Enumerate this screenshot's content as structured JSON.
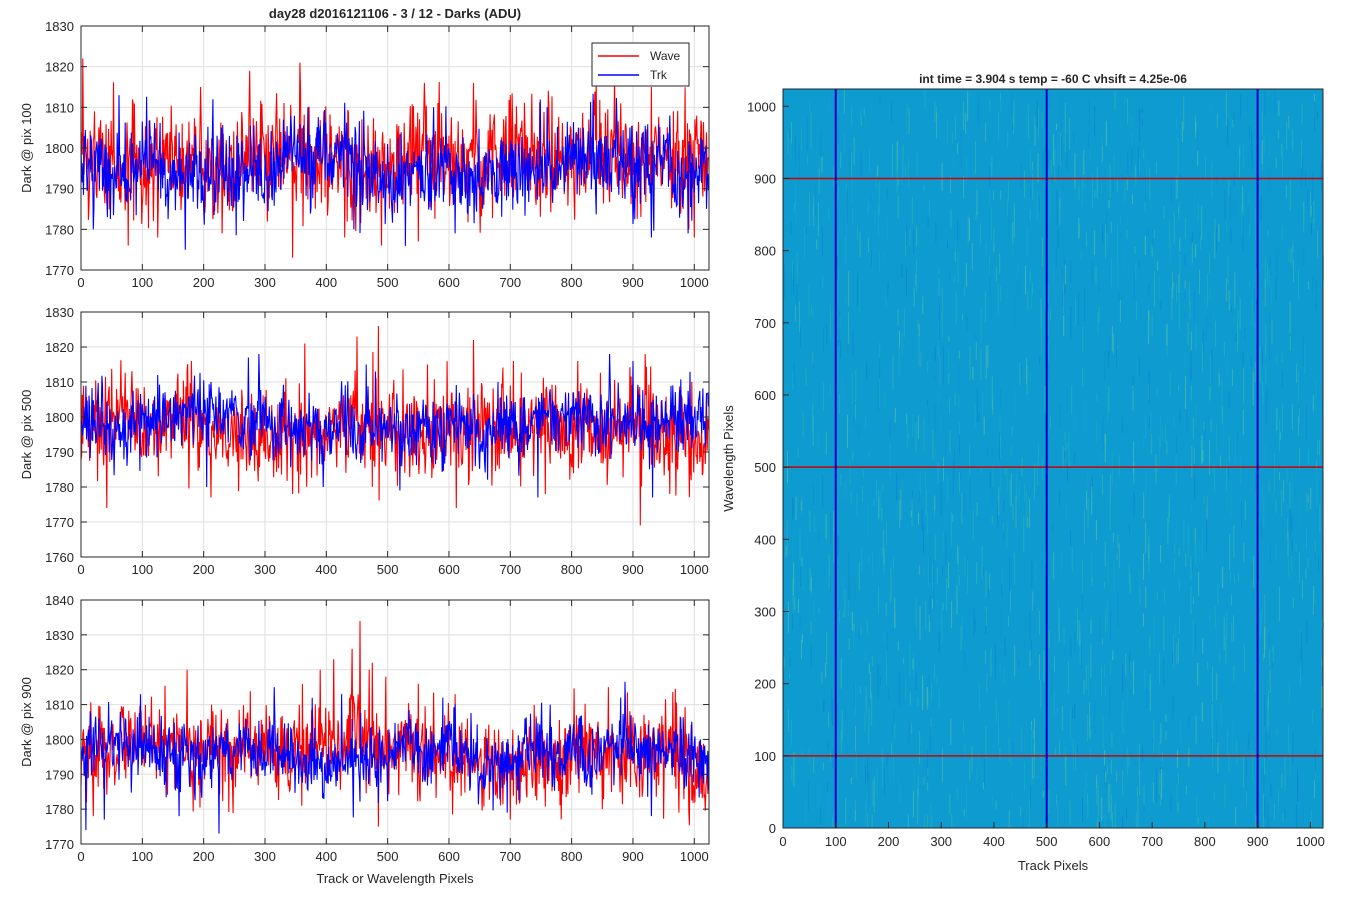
{
  "figure_title": "day28 d2016121106 - 3 / 12 - Darks (ADU)",
  "chart_data": [
    {
      "type": "line",
      "ylabel": "Dark @ pix 100",
      "xlabel": "",
      "xlim": [
        0,
        1024
      ],
      "ylim": [
        1770,
        1830
      ],
      "xticks": [
        0,
        100,
        200,
        300,
        400,
        500,
        600,
        700,
        800,
        900,
        1000
      ],
      "yticks": [
        1770,
        1780,
        1790,
        1800,
        1810,
        1820,
        1830
      ],
      "grid": true,
      "legend": {
        "placement": "top-right",
        "entries": [
          "Wave",
          "Trk"
        ]
      },
      "series": [
        {
          "name": "Wave",
          "color": "#ff0000",
          "mean": 1797,
          "sd": 6.5,
          "peaks": [
            [
              3,
              1822
            ],
            [
              357,
              1821
            ],
            [
              275,
              1819
            ],
            [
              870,
              1818
            ],
            [
              560,
              1816
            ],
            [
              195,
              1815
            ],
            [
              640,
              1816
            ],
            [
              930,
              1815
            ],
            [
              700,
              1813
            ]
          ],
          "troughs": [
            [
              345,
              1773
            ],
            [
              77,
              1776
            ],
            [
              490,
              1776
            ],
            [
              550,
              1777
            ],
            [
              125,
              1778
            ],
            [
              1000,
              1778
            ],
            [
              430,
              1778
            ],
            [
              230,
              1779
            ]
          ]
        },
        {
          "name": "Trk",
          "color": "#0000ff",
          "mean": 1796,
          "sd": 5.0,
          "peaks": [
            [
              62,
              1813
            ],
            [
              215,
              1812
            ],
            [
              370,
              1810
            ],
            [
              575,
              1810
            ],
            [
              760,
              1810
            ],
            [
              960,
              1808
            ]
          ],
          "troughs": [
            [
              170,
              1775
            ],
            [
              930,
              1778
            ],
            [
              20,
              1780
            ],
            [
              610,
              1779
            ],
            [
              990,
              1779
            ],
            [
              445,
              1780
            ]
          ]
        }
      ]
    },
    {
      "type": "line",
      "ylabel": "Dark @ pix 500",
      "xlabel": "",
      "xlim": [
        0,
        1024
      ],
      "ylim": [
        1760,
        1830
      ],
      "xticks": [
        0,
        100,
        200,
        300,
        400,
        500,
        600,
        700,
        800,
        900,
        1000
      ],
      "yticks": [
        1760,
        1770,
        1780,
        1790,
        1800,
        1810,
        1820,
        1830
      ],
      "grid": true,
      "series": [
        {
          "name": "Wave",
          "color": "#ff0000",
          "mean": 1795,
          "sd": 6.5,
          "peaks": [
            [
              485,
              1826
            ],
            [
              450,
              1823
            ],
            [
              640,
              1822
            ],
            [
              365,
              1821
            ],
            [
              920,
              1818
            ],
            [
              705,
              1816
            ],
            [
              180,
              1816
            ],
            [
              810,
              1816
            ],
            [
              565,
              1815
            ]
          ],
          "troughs": [
            [
              912,
              1769
            ],
            [
              42,
              1774
            ],
            [
              612,
              1774
            ],
            [
              212,
              1777
            ],
            [
              757,
              1778
            ],
            [
              960,
              1778
            ],
            [
              345,
              1778
            ]
          ]
        },
        {
          "name": "Trk",
          "color": "#0000ff",
          "mean": 1798,
          "sd": 5.0,
          "peaks": [
            [
              290,
              1818
            ],
            [
              273,
              1817
            ],
            [
              862,
              1818
            ],
            [
              900,
              1816
            ],
            [
              465,
              1815
            ],
            [
              480,
              1813
            ],
            [
              125,
              1812
            ]
          ],
          "troughs": [
            [
              745,
              1777
            ],
            [
              932,
              1777
            ],
            [
              520,
              1779
            ],
            [
              395,
              1780
            ],
            [
              205,
              1780
            ]
          ]
        }
      ]
    },
    {
      "type": "line",
      "ylabel": "Dark @ pix 900",
      "xlabel": "Track or Wavelength Pixels",
      "xlim": [
        0,
        1024
      ],
      "ylim": [
        1770,
        1840
      ],
      "xticks": [
        0,
        100,
        200,
        300,
        400,
        500,
        600,
        700,
        800,
        900,
        1000
      ],
      "yticks": [
        1770,
        1780,
        1790,
        1800,
        1810,
        1820,
        1830,
        1840
      ],
      "grid": true,
      "series": [
        {
          "name": "Wave",
          "color": "#ff0000",
          "mean": 1797,
          "sd": 6.5,
          "peaks": [
            [
              455,
              1834
            ],
            [
              442,
              1826
            ],
            [
              412,
              1823
            ],
            [
              475,
              1822
            ],
            [
              470,
              1820
            ],
            [
              390,
              1820
            ],
            [
              173,
              1820
            ],
            [
              497,
              1818
            ],
            [
              550,
              1816
            ],
            [
              860,
              1815
            ],
            [
              610,
              1813
            ]
          ],
          "troughs": [
            [
              485,
              1775
            ],
            [
              700,
              1777
            ],
            [
              20,
              1778
            ],
            [
              850,
              1780
            ],
            [
              975,
              1779
            ],
            [
              360,
              1781
            ]
          ]
        },
        {
          "name": "Trk",
          "color": "#0000ff",
          "mean": 1797,
          "sd": 5.0,
          "peaks": [
            [
              315,
              1815
            ],
            [
              425,
              1813
            ],
            [
              97,
              1813
            ],
            [
              590,
              1812
            ],
            [
              880,
              1812
            ],
            [
              765,
              1810
            ]
          ],
          "troughs": [
            [
              8,
              1774
            ],
            [
              225,
              1773
            ],
            [
              160,
              1778
            ],
            [
              38,
              1777
            ],
            [
              930,
              1778
            ],
            [
              695,
              1779
            ]
          ]
        }
      ]
    },
    {
      "type": "heatmap",
      "title": "int time = 3.904 s   temp = -60 C   vhsift = 4.25e-06",
      "xlabel": "Track Pixels",
      "ylabel": "Wavelength Pixels",
      "xlim": [
        0,
        1024
      ],
      "ylim": [
        0,
        1024
      ],
      "xticks": [
        0,
        100,
        200,
        300,
        400,
        500,
        600,
        700,
        800,
        900,
        1000
      ],
      "yticks": [
        0,
        100,
        200,
        300,
        400,
        500,
        600,
        700,
        800,
        900,
        1000
      ],
      "base_color": "#0d9bd0",
      "texture_colors": [
        "#1bb0c8",
        "#34b8b8",
        "#0a86cd",
        "#4dc2a8"
      ],
      "vertical_markers": {
        "color": "#0000cc",
        "x": [
          100,
          500,
          900
        ]
      },
      "horizontal_markers": {
        "color": "#cc0000",
        "y": [
          100,
          500,
          900
        ]
      }
    }
  ]
}
